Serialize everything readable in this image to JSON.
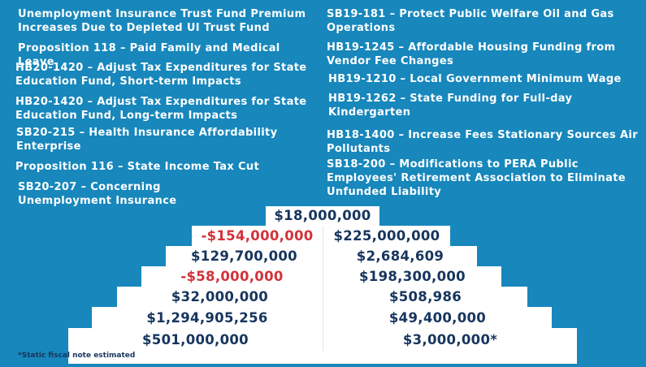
{
  "left_items": [
    "Unemployment Insurance Trust Fund Premium Increases Due to Depleted UI Trust Fund",
    "Proposition 118 – Paid Family and Medical Leave",
    "HB20-1420 – Adjust Tax Expenditures for State Education Fund, Short-term Impacts",
    "HB20-1420 – Adjust Tax Expenditures for State Education Fund, Long-term Impacts",
    "SB20-215 – Health Insurance Affordability Enterprise",
    "Proposition 116 – State Income Tax Cut",
    "SB20-207 – Concerning Unemployment Insurance"
  ],
  "right_items": [
    "SB19-181 – Protect Public Welfare Oil and Gas Operations",
    "HB19-1245 – Affordable Housing Funding from Vendor Fee Changes",
    "HB19-1210 – Local Government Minimum Wage",
    "HB19-1262 – State Funding for Full-day Kindergarten",
    "HB18-1400 – Increase Fees Stationary Sources Air Pollutants",
    "SB18-200 – Modifications to PERA Public Employees' Retirement Association to Eliminate Unfunded Liability"
  ],
  "values": {
    "top": "$18,000,000",
    "left": [
      "-$154,000,000",
      "$129,700,000",
      "-$58,000,000",
      "$32,000,000",
      "$1,294,905,256",
      "$501,000,000"
    ],
    "right": [
      "$225,000,000",
      "$2,684,609",
      "$198,300,000",
      "$508,986",
      "$49,400,000",
      "$3,000,000*"
    ]
  },
  "footnote": "*Static fiscal note estimated",
  "colors": {
    "background": "#1787bc",
    "value_text": "#17355e",
    "negative": "#d2333a"
  }
}
